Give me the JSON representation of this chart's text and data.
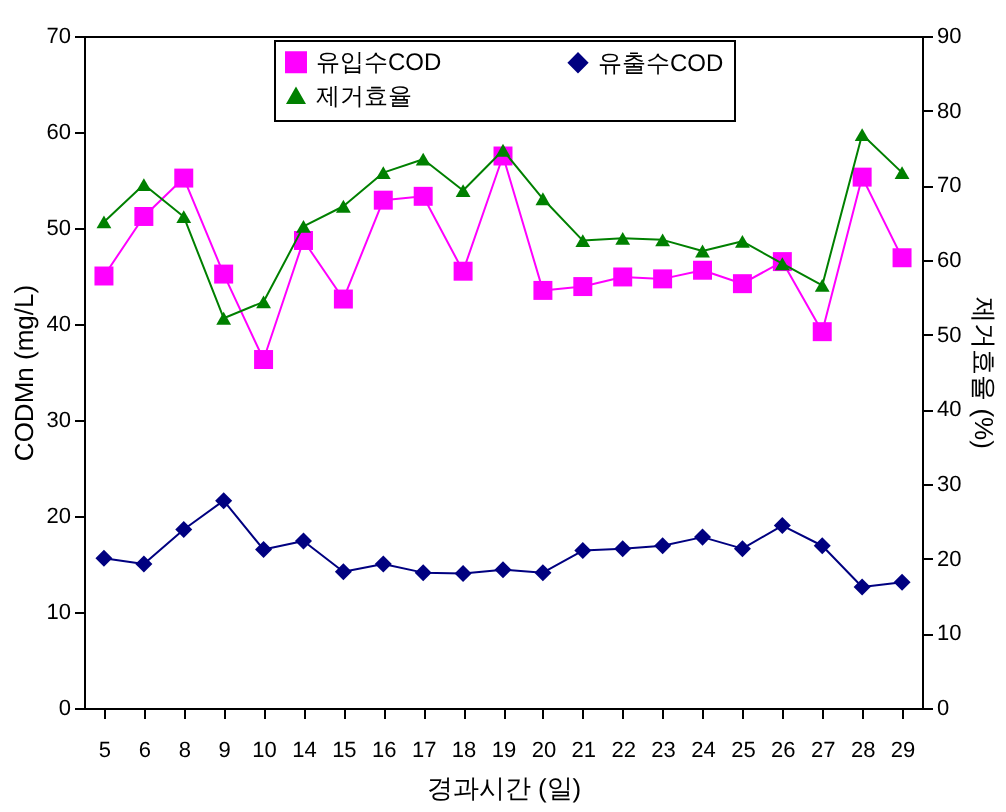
{
  "chart_data": {
    "type": "line",
    "xlabel": "경과시간 (일)",
    "ylabel": "CODMn (mg/L)",
    "y2label": "제거효율 (%)",
    "categories": [
      "5",
      "6",
      "8",
      "9",
      "10",
      "14",
      "15",
      "16",
      "17",
      "18",
      "19",
      "20",
      "21",
      "22",
      "23",
      "24",
      "25",
      "26",
      "27",
      "28",
      "29"
    ],
    "series": [
      {
        "name": "유입수COD",
        "color": "#ff00ff",
        "marker": "square",
        "values": [
          45.0,
          51.2,
          55.2,
          45.2,
          36.3,
          48.7,
          42.6,
          52.9,
          53.3,
          45.5,
          57.5,
          43.5,
          43.9,
          44.9,
          44.7,
          45.6,
          44.2,
          46.5,
          39.2,
          55.3,
          46.9
        ]
      },
      {
        "name": "유출수COD",
        "color": "#000080",
        "marker": "diamond",
        "values": [
          15.6,
          15.0,
          18.6,
          21.6,
          16.5,
          17.4,
          14.2,
          15.0,
          14.1,
          14.0,
          14.4,
          14.1,
          16.4,
          16.6,
          16.9,
          17.8,
          16.6,
          19.0,
          16.9,
          12.6,
          13.1
        ]
      },
      {
        "name": "제거효율",
        "color": "#008000",
        "marker": "triangle",
        "axis": "y2",
        "values": [
          65.1,
          70.1,
          65.8,
          52.2,
          54.4,
          64.5,
          67.2,
          71.7,
          73.5,
          69.3,
          74.7,
          68.2,
          62.6,
          62.9,
          62.7,
          61.2,
          62.5,
          59.5,
          56.6,
          76.8,
          71.7
        ]
      }
    ],
    "ylim": [
      0,
      70
    ],
    "yticks": [
      0,
      10,
      20,
      30,
      40,
      50,
      60,
      70
    ],
    "y2lim": [
      0,
      90
    ],
    "y2ticks": [
      0,
      10,
      20,
      30,
      40,
      50,
      60,
      70,
      80,
      90
    ],
    "grid": false,
    "legend": "top",
    "line_style": "solid"
  }
}
